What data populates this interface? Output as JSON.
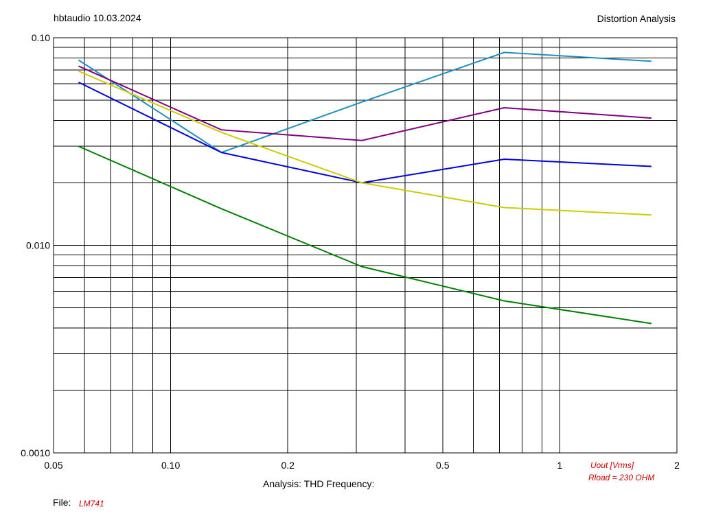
{
  "header": {
    "left": "hbtaudio 10.03.2024",
    "right": "Distortion Analysis"
  },
  "footer": {
    "analysis": "Analysis: THD   Frequency:",
    "file_label": "File:",
    "file_name": "LM741",
    "uout_label": "Uout [Vrms]",
    "rload_label": "Rload = 230 OHM"
  },
  "chart_data": {
    "type": "line",
    "xscale": "log",
    "yscale": "log",
    "xlim": [
      0.05,
      2
    ],
    "ylim": [
      0.001,
      0.1
    ],
    "grid": true,
    "x_ticks": [
      {
        "value": 0.05,
        "label": "0.05"
      },
      {
        "value": 0.1,
        "label": "0.10"
      },
      {
        "value": 0.2,
        "label": "0.2"
      },
      {
        "value": 0.5,
        "label": "0.5"
      },
      {
        "value": 1,
        "label": "1"
      },
      {
        "value": 2,
        "label": "2"
      }
    ],
    "y_ticks": [
      {
        "value": 0.1,
        "label": "0.10"
      },
      {
        "value": 0.01,
        "label": "0.010"
      },
      {
        "value": 0.001,
        "label": "0.0010"
      }
    ],
    "x_gridlines": [
      0.06,
      0.07,
      0.08,
      0.09,
      0.1,
      0.2,
      0.3,
      0.4,
      0.5,
      0.6,
      0.7,
      0.8,
      0.9,
      1,
      2
    ],
    "y_gridlines": [
      0.002,
      0.003,
      0.004,
      0.005,
      0.006,
      0.007,
      0.008,
      0.009,
      0.01,
      0.02,
      0.03,
      0.04,
      0.05,
      0.06,
      0.07,
      0.08,
      0.09
    ],
    "series": [
      {
        "color": "#1f8fbf",
        "x": [
          0.058,
          0.135,
          0.31,
          0.72,
          1.72
        ],
        "y": [
          0.078,
          0.028,
          0.049,
          0.085,
          0.077
        ]
      },
      {
        "color": "#800080",
        "x": [
          0.058,
          0.135,
          0.31,
          0.72,
          1.72
        ],
        "y": [
          0.073,
          0.036,
          0.032,
          0.046,
          0.041
        ]
      },
      {
        "color": "#0000dd",
        "x": [
          0.058,
          0.135,
          0.31,
          0.72,
          1.72
        ],
        "y": [
          0.061,
          0.028,
          0.02,
          0.026,
          0.024
        ]
      },
      {
        "color": "#cccc00",
        "x": [
          0.058,
          0.135,
          0.31,
          0.72,
          1.72
        ],
        "y": [
          0.069,
          0.035,
          0.02,
          0.0152,
          0.014
        ]
      },
      {
        "color": "#008000",
        "x": [
          0.058,
          0.135,
          0.31,
          0.72,
          1.72
        ],
        "y": [
          0.03,
          0.015,
          0.0079,
          0.0054,
          0.0042
        ]
      }
    ]
  }
}
